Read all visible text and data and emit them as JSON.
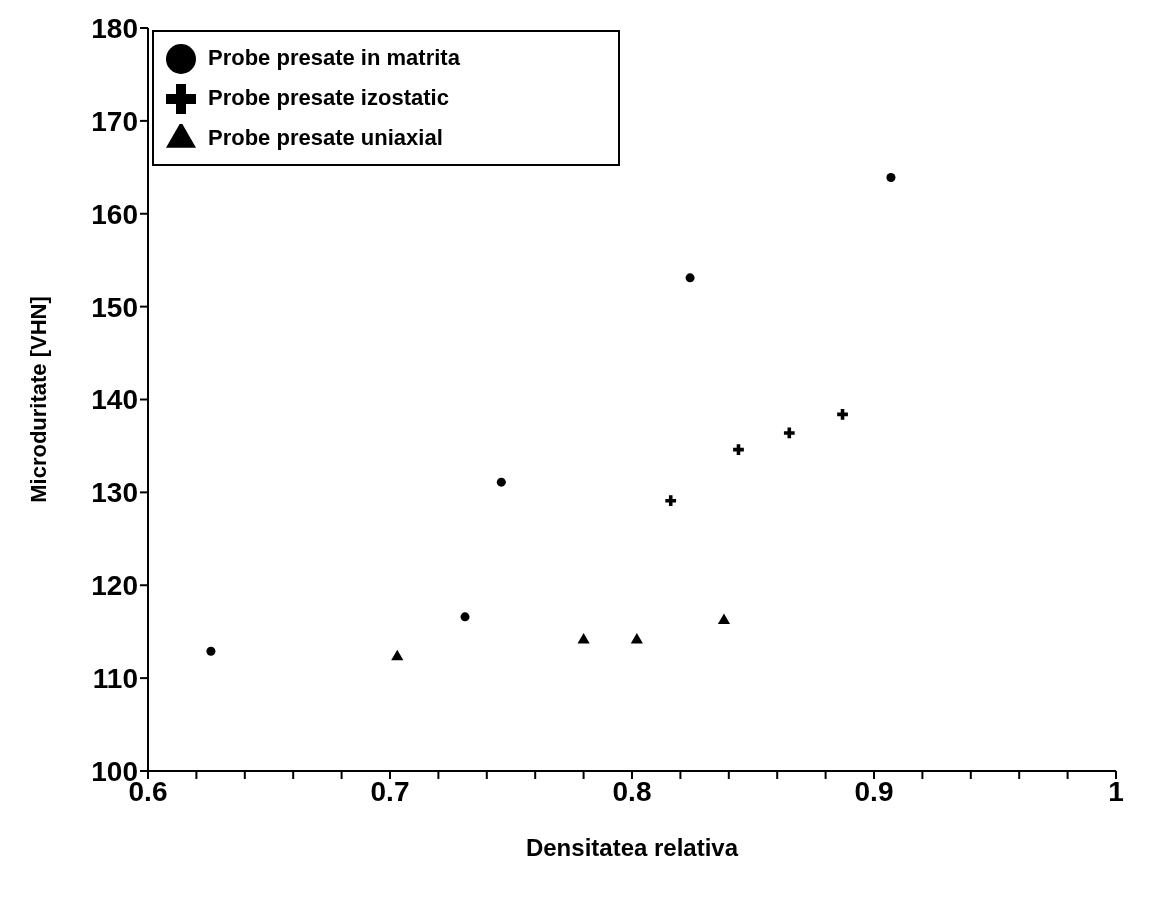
{
  "chart_data": {
    "type": "scatter",
    "xlabel": "Densitatea relativa",
    "ylabel": "Microduritate [VHN]",
    "series": [
      {
        "name": "Probe presate in matrita",
        "color": "#000000",
        "marker": "circle",
        "x": [
          0.626,
          0.731,
          0.746,
          0.824,
          0.907
        ],
        "values": [
          112.9,
          116.6,
          131.1,
          153.1,
          163.9
        ]
      },
      {
        "name": "Probe presate izostatic",
        "color": "#000000",
        "marker": "cross",
        "x": [
          0.816,
          0.844,
          0.865,
          0.887
        ],
        "values": [
          129.1,
          134.6,
          136.4,
          138.4
        ]
      },
      {
        "name": "Probe presate uniaxial",
        "color": "#000000",
        "marker": "triangle",
        "x": [
          0.703,
          0.78,
          0.802,
          0.838
        ],
        "values": [
          112.3,
          114.1,
          114.1,
          116.2
        ]
      }
    ],
    "xlim": [
      0.6,
      1
    ],
    "ylim": [
      100,
      180
    ],
    "xticks": [
      0.6,
      {
        "value": 0.62,
        "label": null
      },
      {
        "value": 0.64,
        "label": null
      },
      {
        "value": 0.66,
        "label": null
      },
      {
        "value": 0.68,
        "label": null
      },
      0.7,
      {
        "value": 0.72,
        "label": null
      },
      {
        "value": 0.74,
        "label": null
      },
      {
        "value": 0.76,
        "label": null
      },
      {
        "value": 0.78,
        "label": null
      },
      0.8,
      {
        "value": 0.82,
        "label": null
      },
      {
        "value": 0.84,
        "label": null
      },
      {
        "value": 0.86,
        "label": null
      },
      {
        "value": 0.88,
        "label": null
      },
      0.9,
      {
        "value": 0.92,
        "label": null
      },
      {
        "value": 0.94,
        "label": null
      },
      {
        "value": 0.96,
        "label": null
      },
      {
        "value": 0.98,
        "label": null
      },
      1
    ],
    "yticks": [
      100,
      110,
      120,
      130,
      140,
      150,
      160,
      170,
      180
    ],
    "grid": false,
    "legend": "top left"
  }
}
